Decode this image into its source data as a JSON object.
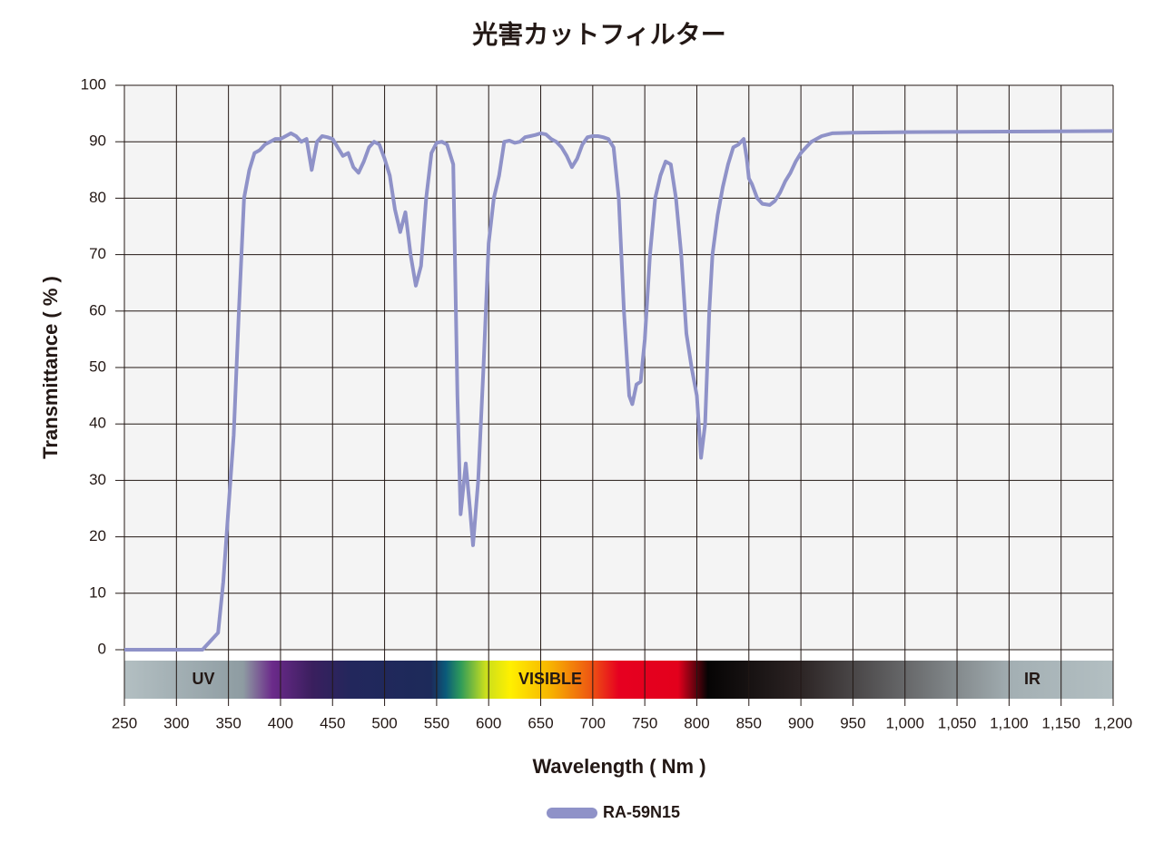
{
  "chart_data": {
    "type": "line",
    "title": "光害カットフィルター",
    "xlabel": "Wavelength ( Nm )",
    "ylabel": "Transmittance ( % )",
    "annotations": [
      "UV",
      "VISIBLE",
      "IR"
    ],
    "xlim": [
      250,
      1200
    ],
    "ylim": [
      0,
      100
    ],
    "xticks": [
      250,
      300,
      350,
      400,
      450,
      500,
      550,
      600,
      650,
      700,
      750,
      800,
      850,
      900,
      950,
      {
        "value": 1000,
        "label": "1,000"
      },
      {
        "value": 1050,
        "label": "1,050"
      },
      {
        "value": 1100,
        "label": "1,100"
      },
      {
        "value": 1150,
        "label": "1,150"
      },
      {
        "value": 1200,
        "label": "1,200"
      }
    ],
    "yticks": [
      0,
      10,
      20,
      30,
      40,
      50,
      60,
      70,
      80,
      90,
      100
    ],
    "grid": true,
    "legend": "bottom",
    "series": [
      {
        "name": "RA-59N15",
        "color": "#8f92c8",
        "x": [
          250,
          325,
          335,
          340,
          345,
          350,
          355,
          360,
          365,
          370,
          375,
          380,
          385,
          390,
          395,
          400,
          405,
          410,
          415,
          420,
          425,
          430,
          435,
          440,
          445,
          450,
          455,
          460,
          465,
          470,
          475,
          480,
          485,
          490,
          495,
          500,
          505,
          510,
          515,
          520,
          525,
          530,
          535,
          540,
          545,
          550,
          555,
          560,
          566,
          570,
          573,
          578,
          582,
          585,
          590,
          595,
          600,
          605,
          610,
          615,
          620,
          625,
          630,
          635,
          640,
          645,
          650,
          655,
          660,
          665,
          670,
          675,
          680,
          685,
          690,
          695,
          700,
          705,
          710,
          715,
          720,
          725,
          730,
          735,
          738,
          742,
          746,
          750,
          755,
          760,
          765,
          770,
          775,
          780,
          785,
          790,
          795,
          800,
          804,
          808,
          812,
          815,
          820,
          825,
          830,
          835,
          840,
          845,
          848,
          850,
          853,
          858,
          863,
          870,
          875,
          880,
          885,
          890,
          895,
          900,
          905,
          910,
          920,
          930,
          950,
          1000,
          1100,
          1200
        ],
        "values": [
          0,
          0,
          2,
          3,
          12,
          25,
          38,
          60,
          80,
          85,
          88,
          88.5,
          89.5,
          90,
          90.5,
          90.5,
          91,
          91.5,
          91,
          90,
          90.5,
          85,
          90,
          91,
          90.8,
          90.5,
          89,
          87.5,
          88,
          85.5,
          84.5,
          86.5,
          89,
          90,
          89.5,
          87,
          84,
          78,
          74,
          77.5,
          70,
          64.5,
          68,
          80,
          88,
          89.8,
          90,
          89.5,
          86,
          45,
          24,
          33,
          25,
          18.5,
          30,
          50,
          72,
          80,
          84,
          90,
          90.2,
          89.8,
          90,
          90.8,
          91,
          91.2,
          91.5,
          91.3,
          90.5,
          90,
          89,
          87.5,
          85.5,
          87,
          89.5,
          90.8,
          91,
          91,
          90.8,
          90.5,
          89,
          80,
          60,
          45,
          43.5,
          47,
          47.5,
          55,
          70,
          80,
          84,
          86.5,
          86,
          80,
          70,
          56,
          50,
          45,
          34,
          40,
          60,
          70,
          77,
          82,
          86,
          89,
          89.5,
          90.5,
          87,
          83.5,
          82.5,
          80,
          79,
          78.8,
          79.5,
          81,
          83,
          84.5,
          86.5,
          88,
          89,
          90,
          91,
          91.5,
          91.6,
          91.7,
          91.8,
          91.9
        ]
      }
    ]
  }
}
